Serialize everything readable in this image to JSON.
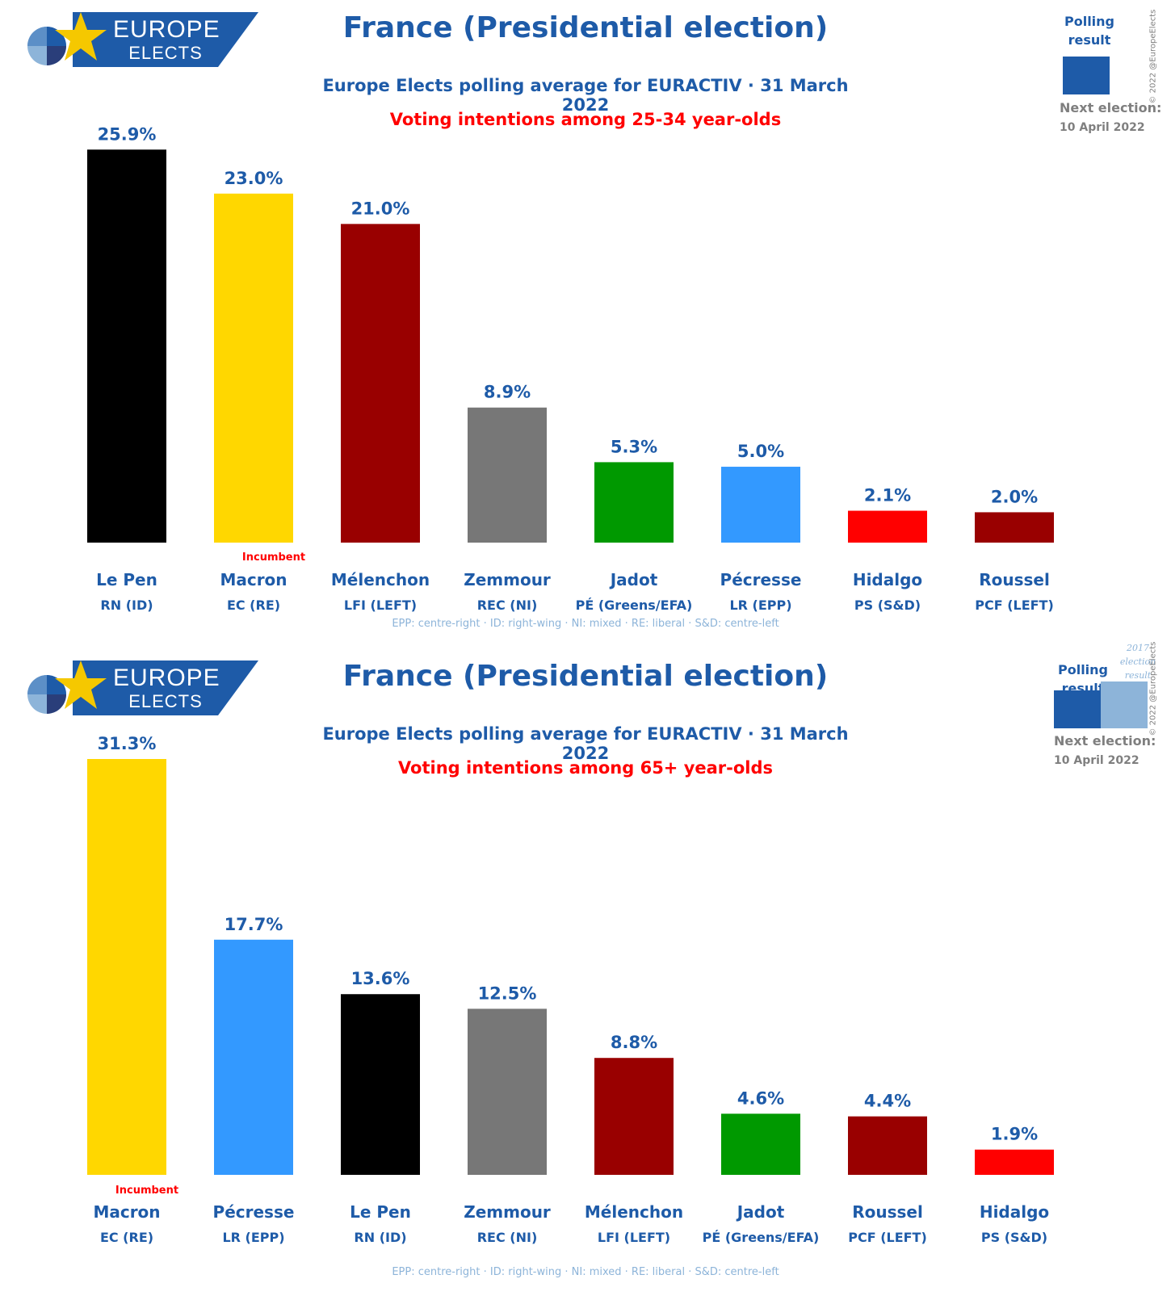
{
  "panels": [
    {
      "logo": {
        "top": "EUROPE",
        "bottom": "ELECTS"
      },
      "title": "France (Presidential election)",
      "subtitle": "Europe Elects polling average for EURACTIV · 31 March 2022",
      "subtitle2": "Voting intentions among 25-34 year-olds",
      "legend": {
        "polling_label_1": "Polling",
        "polling_label_2": "result",
        "previous_label": null
      },
      "next_election_label": "Next election:",
      "next_election_date": "10 April 2022",
      "copyright": "© 2022 @EuropeElects",
      "footnote": "EPP: centre-right · ID: right-wing · NI: mixed · RE: liberal · S&D: centre-left",
      "incumbent_label": "Incumbent",
      "colors": {
        "brand": "#1e5ba8",
        "previous": "#8db4d9",
        "incumbent": "#ff0000"
      }
    },
    {
      "logo": {
        "top": "EUROPE",
        "bottom": "ELECTS"
      },
      "title": "France (Presidential election)",
      "subtitle": "Europe Elects polling average for EURACTIV · 31 March 2022",
      "subtitle2": "Voting intentions among 65+ year-olds",
      "legend": {
        "polling_label_1": "Polling",
        "polling_label_2": "result",
        "previous_label": [
          "2017",
          "election",
          "result"
        ]
      },
      "next_election_label": "Next election:",
      "next_election_date": "10 April 2022",
      "copyright": "© 2022 @EuropeElects",
      "footnote": "EPP: centre-right · ID: right-wing · NI: mixed · RE: liberal · S&D: centre-left",
      "incumbent_label": "Incumbent",
      "colors": {
        "brand": "#1e5ba8",
        "previous": "#8db4d9",
        "incumbent": "#ff0000"
      }
    }
  ],
  "chart_data": [
    {
      "type": "bar",
      "title": "France (Presidential election)",
      "subtitle": "Voting intentions among 25-34 year-olds",
      "categories": [
        "Le Pen",
        "Macron",
        "Mélenchon",
        "Zemmour",
        "Jadot",
        "Pécresse",
        "Hidalgo",
        "Roussel"
      ],
      "parties": [
        "RN (ID)",
        "EC (RE)",
        "LFI (LEFT)",
        "REC (NI)",
        "PÉ (Greens/EFA)",
        "LR (EPP)",
        "PS (S&D)",
        "PCF (LEFT)"
      ],
      "values": [
        25.9,
        23.0,
        21.0,
        8.9,
        5.3,
        5.0,
        2.1,
        2.0
      ],
      "labels": [
        "25.9%",
        "23.0%",
        "21.0%",
        "8.9%",
        "5.3%",
        "5.0%",
        "2.1%",
        "2.0%"
      ],
      "colors": [
        "#000000",
        "#ffd700",
        "#990000",
        "#777777",
        "#009900",
        "#3399ff",
        "#ff0000",
        "#990000"
      ],
      "incumbent_index": 1,
      "ylim": [
        0,
        26.5
      ]
    },
    {
      "type": "bar",
      "title": "France (Presidential election)",
      "subtitle": "Voting intentions among 65+ year-olds",
      "categories": [
        "Macron",
        "Pécresse",
        "Le Pen",
        "Zemmour",
        "Mélenchon",
        "Jadot",
        "Roussel",
        "Hidalgo"
      ],
      "parties": [
        "EC (RE)",
        "LR (EPP)",
        "RN (ID)",
        "REC (NI)",
        "LFI (LEFT)",
        "PÉ (Greens/EFA)",
        "PCF (LEFT)",
        "PS (S&D)"
      ],
      "values": [
        31.3,
        17.7,
        13.6,
        12.5,
        8.8,
        4.6,
        4.4,
        1.9
      ],
      "labels": [
        "31.3%",
        "17.7%",
        "13.6%",
        "12.5%",
        "8.8%",
        "4.6%",
        "4.4%",
        "1.9%"
      ],
      "colors": [
        "#ffd700",
        "#3399ff",
        "#000000",
        "#777777",
        "#990000",
        "#009900",
        "#990000",
        "#ff0000"
      ],
      "incumbent_index": 0,
      "ylim": [
        0,
        31.3
      ]
    }
  ]
}
